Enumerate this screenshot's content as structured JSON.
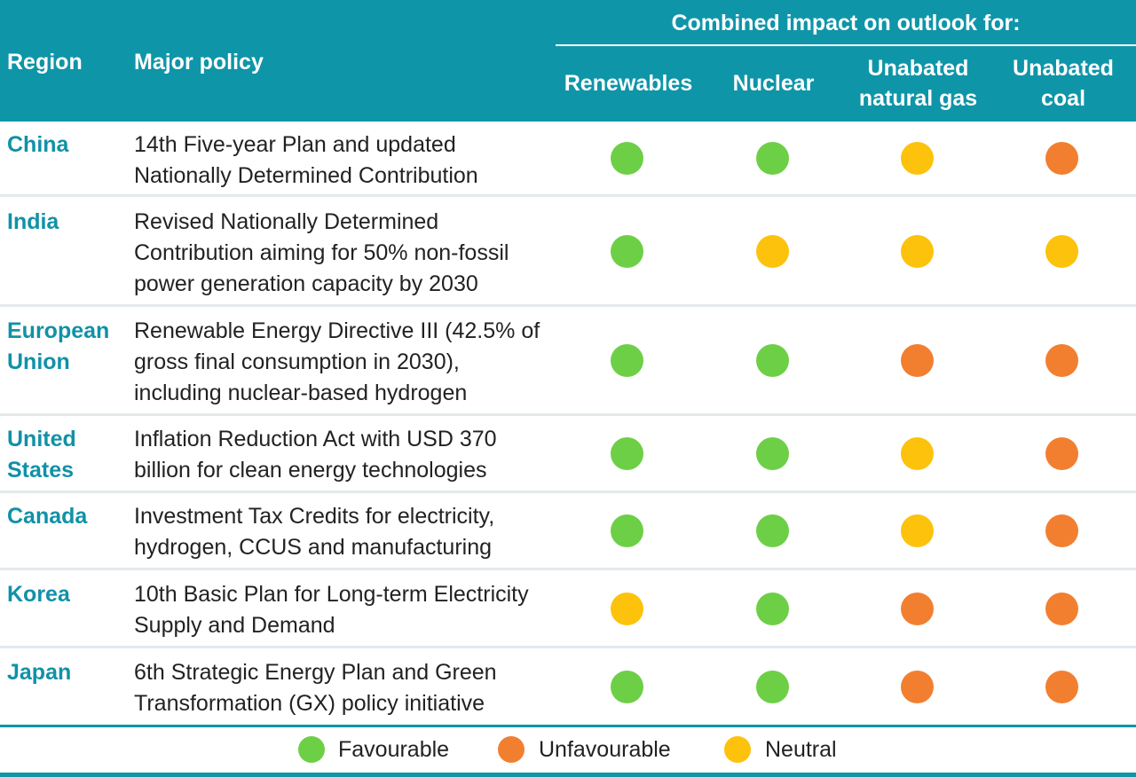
{
  "header": {
    "region": "Region",
    "policy": "Major policy",
    "combined": "Combined impact on outlook for:",
    "columns": [
      "Renewables",
      "Nuclear",
      "Unabated natural gas",
      "Unabated coal"
    ]
  },
  "rows": [
    {
      "region": "China",
      "policy": "14th Five-year Plan and updated Nationally Determined Contribution",
      "impacts": [
        "Favourable",
        "Favourable",
        "Neutral",
        "Unfavourable"
      ]
    },
    {
      "region": "India",
      "policy": "Revised Nationally Determined Contribution aiming for 50% non-fossil power generation capacity by 2030",
      "impacts": [
        "Favourable",
        "Neutral",
        "Neutral",
        "Neutral"
      ]
    },
    {
      "region": "European Union",
      "policy": "Renewable Energy Directive III (42.5% of gross final consumption in 2030), including nuclear-based hydrogen",
      "impacts": [
        "Favourable",
        "Favourable",
        "Unfavourable",
        "Unfavourable"
      ]
    },
    {
      "region": "United States",
      "policy": "Inflation Reduction Act with USD 370 billion for clean energy technologies",
      "impacts": [
        "Favourable",
        "Favourable",
        "Neutral",
        "Unfavourable"
      ]
    },
    {
      "region": "Canada",
      "policy": "Investment Tax Credits for electricity, hydrogen, CCUS and manufacturing",
      "impacts": [
        "Favourable",
        "Favourable",
        "Neutral",
        "Unfavourable"
      ]
    },
    {
      "region": "Korea",
      "policy": "10th Basic Plan for Long-term Electricity Supply and Demand",
      "impacts": [
        "Neutral",
        "Favourable",
        "Unfavourable",
        "Unfavourable"
      ]
    },
    {
      "region": "Japan",
      "policy": "6th Strategic Energy Plan and Green Transformation (GX) policy initiative",
      "impacts": [
        "Favourable",
        "Favourable",
        "Unfavourable",
        "Unfavourable"
      ]
    }
  ],
  "legend": [
    {
      "label": "Favourable",
      "color": "#6dcf46"
    },
    {
      "label": "Unfavourable",
      "color": "#f27f30"
    },
    {
      "label": "Neutral",
      "color": "#fcc20c"
    }
  ],
  "colors": {
    "header_bg": "#0f95a8",
    "region_text": "#1191a7",
    "favourable": "#6dcf46",
    "unfavourable": "#f27f30",
    "neutral": "#fcc20c"
  }
}
